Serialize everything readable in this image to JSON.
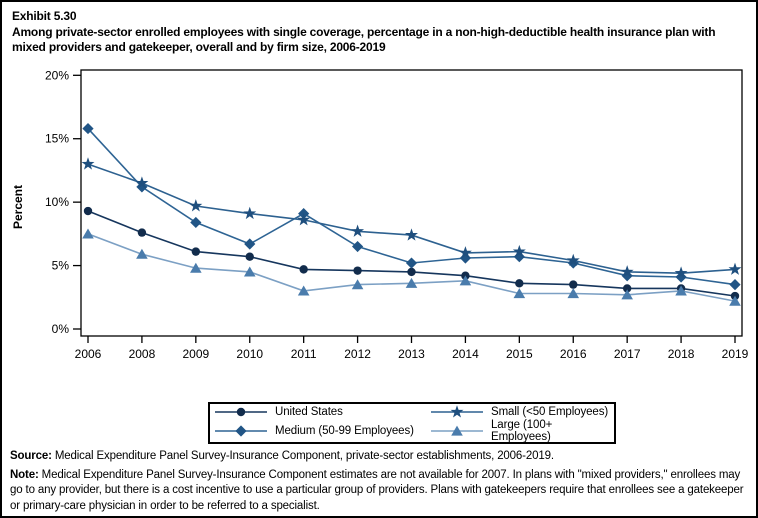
{
  "header": {
    "exhibit": "Exhibit 5.30",
    "title": "Among private-sector enrolled employees with single coverage, percentage in a non-high-deductible health insurance plan with mixed providers and gatekeeper, overall and by firm size, 2006-2019"
  },
  "chart_data": {
    "type": "line",
    "title": "Percentage in a non-high-deductible health insurance plan with mixed providers and gatekeeper, overall and by firm size, 2006-2019",
    "xlabel": "",
    "ylabel": "Percent",
    "ylim": [
      0,
      20
    ],
    "yticks": [
      0,
      5,
      10,
      15,
      20
    ],
    "ytick_suffix": "%",
    "grid": false,
    "legend_position": "bottom",
    "categories": [
      "2006",
      "2008",
      "2009",
      "2010",
      "2011",
      "2012",
      "2013",
      "2014",
      "2015",
      "2016",
      "2017",
      "2018",
      "2019"
    ],
    "series": [
      {
        "key": "us",
        "name": "United States",
        "marker": "circle",
        "color": "#16365D",
        "marker_color": "#122C4C",
        "values": [
          9.3,
          7.6,
          6.1,
          5.7,
          4.7,
          4.6,
          4.5,
          4.2,
          3.6,
          3.5,
          3.2,
          3.2,
          2.6
        ]
      },
      {
        "key": "medium",
        "name": "Medium (50-99 Employees)",
        "marker": "diamond",
        "color": "#2E6494",
        "marker_color": "#215586",
        "values": [
          15.8,
          11.2,
          8.4,
          6.7,
          9.1,
          6.5,
          5.2,
          5.6,
          5.7,
          5.2,
          4.2,
          4.1,
          3.5
        ]
      },
      {
        "key": "small",
        "name": "Small (<50 Employees)",
        "marker": "star",
        "color": "#2D6190",
        "marker_color": "#1F4F7E",
        "values": [
          13.0,
          11.5,
          9.7,
          9.1,
          8.6,
          7.7,
          7.4,
          6.0,
          6.1,
          5.4,
          4.5,
          4.4,
          4.7
        ]
      },
      {
        "key": "large",
        "name": "Large (100+ Employees)",
        "marker": "triangle",
        "color": "#7CA0C4",
        "marker_color": "#4A7CAC",
        "values": [
          7.5,
          5.9,
          4.8,
          4.5,
          3.0,
          3.5,
          3.6,
          3.8,
          2.8,
          2.8,
          2.7,
          3.0,
          2.2
        ]
      }
    ],
    "legend_order": [
      "us",
      "small",
      "medium",
      "large"
    ]
  },
  "footer": {
    "source_label": "Source:",
    "source_text": " Medical Expenditure Panel Survey-Insurance Component, private-sector establishments, 2006-2019.",
    "note_label": "Note:",
    "note_text": " Medical Expenditure Panel Survey-Insurance Component estimates are not available for 2007. In plans with \"mixed providers,\" enrollees may go to any provider, but there is a cost incentive to use a particular group of providers. Plans with gatekeepers require that enrollees see a gatekeeper or primary-care physician in order to be referred to a specialist."
  }
}
